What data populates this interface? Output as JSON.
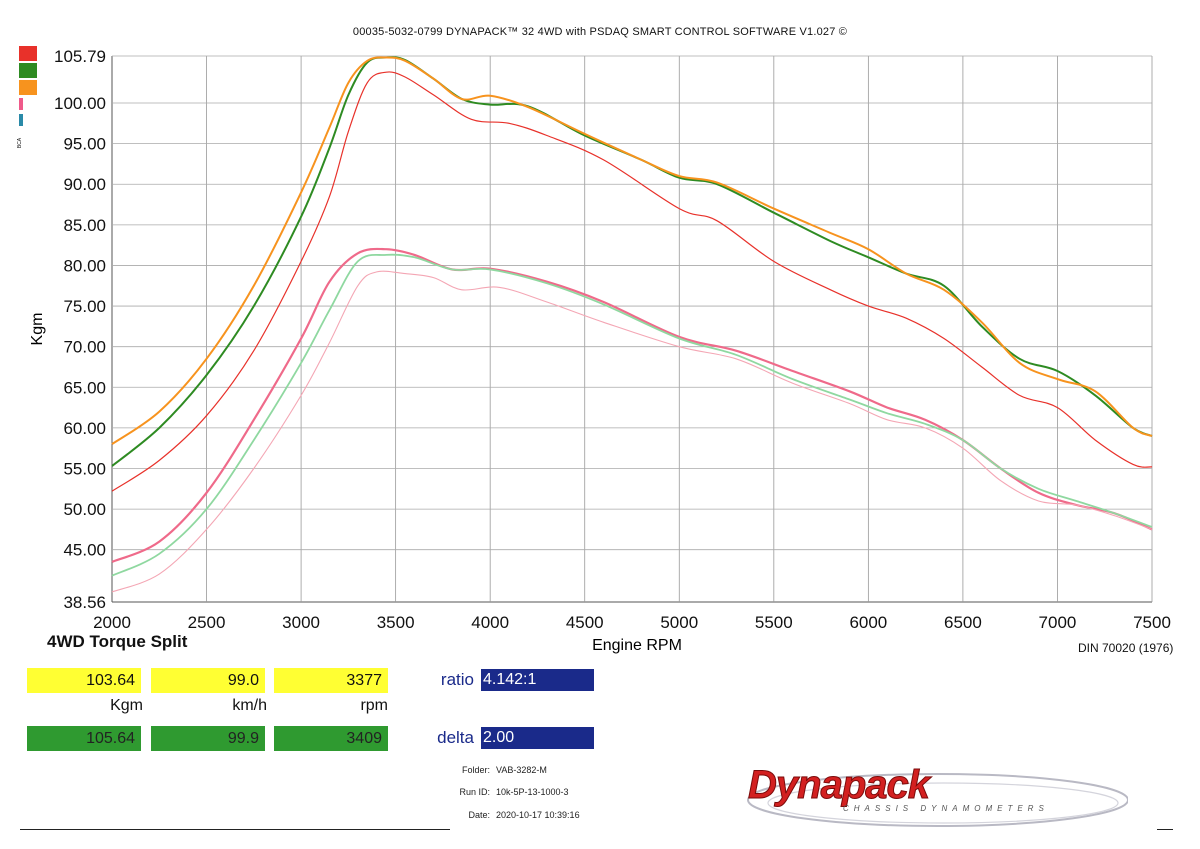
{
  "header": {
    "title": "00035-5032-0799 DYNAPACK™ 32 4WD with PSDAQ SMART CONTROL SOFTWARE V1.027 ©"
  },
  "legend": {
    "colors": [
      "#e8312a",
      "#2e8b22",
      "#f7931e",
      "#ef5a8a",
      "#2a8aa8"
    ],
    "tiny_label": "BCA"
  },
  "chart_data": {
    "type": "line",
    "title": "4WD Torque Split",
    "xlabel": "Engine RPM",
    "ylabel": "Kgm",
    "xlim": [
      2000,
      7500
    ],
    "ylim": [
      38.56,
      105.79
    ],
    "xticks": [
      2000,
      2500,
      3000,
      3500,
      4000,
      4500,
      5000,
      5500,
      6000,
      6500,
      7000,
      7500
    ],
    "yticks": [
      38.56,
      45.0,
      50.0,
      55.0,
      60.0,
      65.0,
      70.0,
      75.0,
      80.0,
      85.0,
      90.0,
      95.0,
      100.0,
      105.79
    ],
    "ytick_labels": [
      "38.56",
      "45.00",
      "50.00",
      "55.00",
      "60.00",
      "65.00",
      "70.00",
      "75.00",
      "80.00",
      "85.00",
      "90.00",
      "95.00",
      "100.00",
      "105.79"
    ],
    "grid": true,
    "series": [
      {
        "color": "#e8312a",
        "width": 1.2,
        "x": [
          2000,
          2250,
          2500,
          2750,
          3000,
          3150,
          3250,
          3350,
          3450,
          3550,
          3700,
          3900,
          4100,
          4300,
          4600,
          5000,
          5200,
          5500,
          5800,
          6000,
          6200,
          6400,
          6600,
          6800,
          7000,
          7200,
          7400,
          7500
        ],
        "y": [
          52.2,
          56.0,
          61.5,
          69.5,
          80.5,
          88.5,
          96.5,
          102.5,
          103.8,
          103.2,
          101.0,
          98.0,
          97.5,
          96.0,
          93.0,
          87.0,
          85.5,
          80.5,
          77.0,
          75.0,
          73.5,
          71.0,
          67.5,
          64.0,
          62.5,
          58.5,
          55.5,
          55.2
        ]
      },
      {
        "color": "#2e8b22",
        "width": 2.0,
        "x": [
          2000,
          2250,
          2500,
          2750,
          3000,
          3150,
          3250,
          3350,
          3450,
          3550,
          3700,
          3850,
          4000,
          4200,
          4500,
          4800,
          5000,
          5200,
          5500,
          5800,
          6000,
          6200,
          6400,
          6600,
          6800,
          7000,
          7200,
          7400,
          7500
        ],
        "y": [
          55.3,
          60.0,
          66.5,
          75.0,
          86.0,
          94.5,
          101.0,
          105.0,
          105.6,
          105.3,
          103.0,
          100.5,
          99.8,
          99.6,
          96.0,
          93.0,
          90.8,
          90.0,
          86.5,
          83.0,
          81.0,
          79.0,
          77.5,
          72.5,
          68.5,
          67.0,
          64.0,
          60.0,
          59.0
        ]
      },
      {
        "color": "#f7931e",
        "width": 2.0,
        "x": [
          2000,
          2250,
          2500,
          2750,
          3000,
          3150,
          3250,
          3350,
          3450,
          3550,
          3700,
          3850,
          4000,
          4200,
          4500,
          4800,
          5000,
          5200,
          5500,
          5800,
          6000,
          6200,
          6400,
          6600,
          6800,
          7000,
          7200,
          7400,
          7500
        ],
        "y": [
          58.0,
          62.0,
          68.5,
          77.5,
          89.0,
          97.0,
          102.5,
          105.2,
          105.6,
          105.2,
          103.0,
          100.5,
          100.9,
          99.5,
          96.2,
          93.0,
          91.0,
          90.2,
          87.0,
          84.0,
          82.0,
          79.0,
          77.0,
          73.0,
          68.0,
          66.0,
          64.5,
          60.0,
          59.0
        ]
      },
      {
        "color": "#ef6a8a",
        "width": 2.2,
        "x": [
          2000,
          2250,
          2500,
          2750,
          3000,
          3150,
          3300,
          3450,
          3600,
          3800,
          4000,
          4300,
          4600,
          5000,
          5300,
          5600,
          5900,
          6100,
          6300,
          6500,
          6700,
          6900,
          7100,
          7300,
          7500
        ],
        "y": [
          43.5,
          46.0,
          52.0,
          61.0,
          71.0,
          78.0,
          81.5,
          82.0,
          81.3,
          79.5,
          79.6,
          78.0,
          75.5,
          71.2,
          69.5,
          67.0,
          64.5,
          62.5,
          61.0,
          58.5,
          55.0,
          52.0,
          50.5,
          49.5,
          47.5
        ]
      },
      {
        "color": "#8fd8a0",
        "width": 1.8,
        "x": [
          2000,
          2250,
          2500,
          2750,
          3000,
          3150,
          3300,
          3450,
          3600,
          3800,
          4000,
          4300,
          4600,
          5000,
          5300,
          5600,
          5900,
          6100,
          6300,
          6500,
          6700,
          6900,
          7100,
          7300,
          7500
        ],
        "y": [
          41.8,
          44.5,
          50.0,
          58.5,
          68.0,
          74.5,
          80.5,
          81.3,
          81.0,
          79.5,
          79.5,
          77.8,
          75.2,
          71.0,
          69.0,
          66.0,
          63.5,
          61.8,
          60.5,
          58.5,
          55.0,
          52.5,
          51.0,
          49.5,
          47.8
        ]
      },
      {
        "color": "#f4a6b4",
        "width": 1.1,
        "x": [
          2000,
          2250,
          2500,
          2750,
          3000,
          3150,
          3300,
          3400,
          3550,
          3700,
          3850,
          4050,
          4300,
          4600,
          5000,
          5300,
          5600,
          5900,
          6100,
          6300,
          6500,
          6700,
          6900,
          7100,
          7300,
          7500
        ],
        "y": [
          39.8,
          42.0,
          47.5,
          55.0,
          64.0,
          70.5,
          77.5,
          79.2,
          79.0,
          78.5,
          77.0,
          77.3,
          75.5,
          73.0,
          70.0,
          68.5,
          65.5,
          63.0,
          61.0,
          60.0,
          57.5,
          53.5,
          51.0,
          50.5,
          49.2,
          47.5
        ]
      }
    ]
  },
  "footer": {
    "din": "DIN 70020 (1976)",
    "row1": {
      "kgm": "103.64",
      "kmh": "99.0",
      "rpm": "3377"
    },
    "units": {
      "kgm": "Kgm",
      "kmh": "km/h",
      "rpm": "rpm"
    },
    "row2": {
      "kgm": "105.64",
      "kmh": "99.9",
      "rpm": "3409"
    },
    "ratio_label": "ratio",
    "ratio_value": "4.142:1",
    "delta_label": "delta",
    "delta_value": "2.00",
    "folder_label": "Folder:",
    "folder_value": "VAB-3282-M",
    "runid_label": "Run ID:",
    "runid_value": "10k-5P-13-1000-3",
    "date_label": "Date:",
    "date_value": "2020-10-17 10:39:16"
  },
  "logo": {
    "brand": "Dynapack",
    "tagline": "CHASSIS DYNAMOMETERS"
  }
}
